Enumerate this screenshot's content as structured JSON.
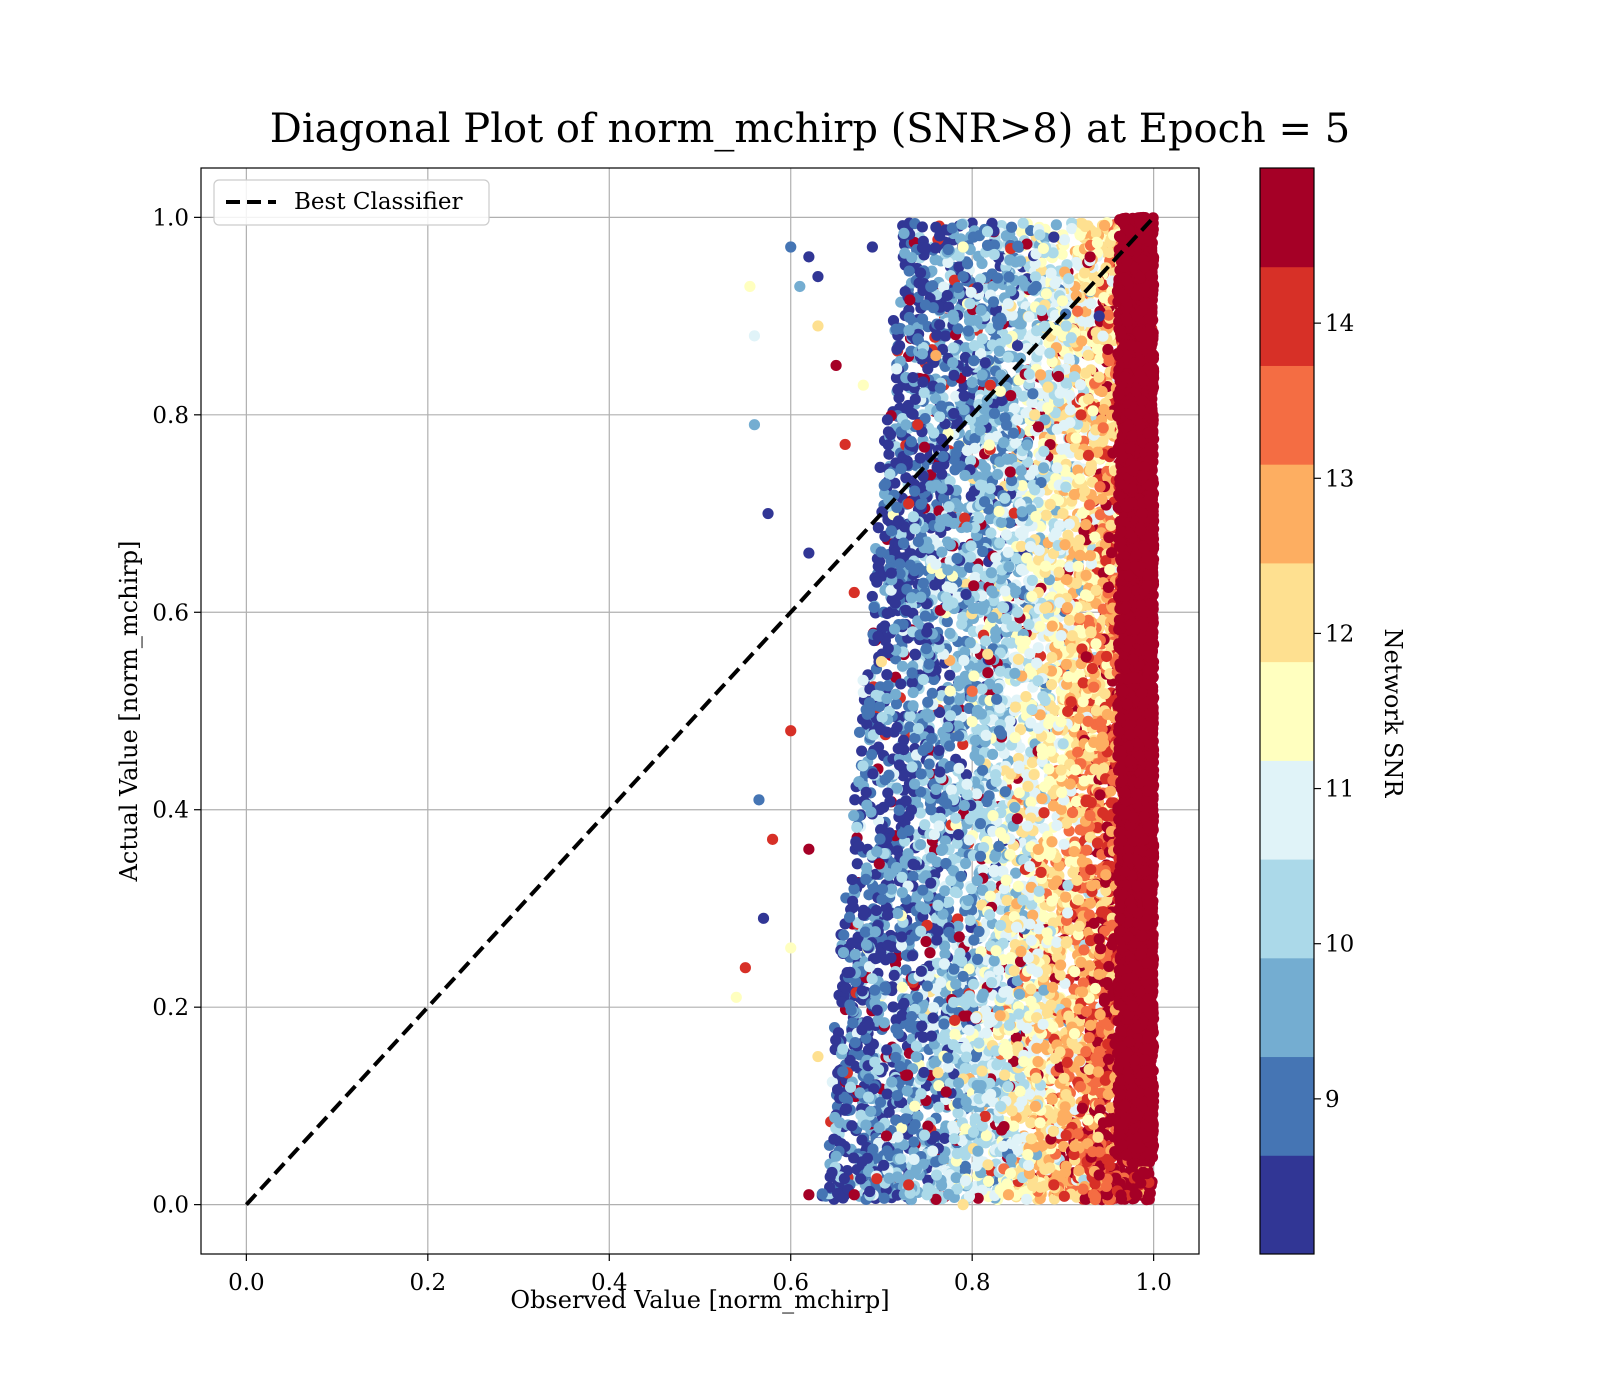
{
  "chart_data": {
    "type": "scatter",
    "title": "Diagonal Plot of norm_mchirp (SNR>8) at Epoch = 5",
    "xlabel": "Observed Value [norm_mchirp]",
    "ylabel": "Actual Value [norm_mchirp]",
    "xlim": [
      -0.05,
      1.05
    ],
    "ylim": [
      -0.05,
      1.05
    ],
    "xticks": [
      0.0,
      0.2,
      0.4,
      0.6,
      0.8,
      1.0
    ],
    "xtick_labels": [
      "0.0",
      "0.2",
      "0.4",
      "0.6",
      "0.8",
      "1.0"
    ],
    "yticks": [
      0.0,
      0.2,
      0.4,
      0.6,
      0.8,
      1.0
    ],
    "ytick_labels": [
      "0.0",
      "0.2",
      "0.4",
      "0.6",
      "0.8",
      "1.0"
    ],
    "grid": true,
    "legend": {
      "location": "upper-left",
      "entries": [
        {
          "label": "Best Classifier",
          "style": "dashed",
          "color": "#000000"
        }
      ]
    },
    "reference_line": {
      "label": "Best Classifier",
      "x": [
        0.0,
        1.0
      ],
      "y": [
        0.0,
        1.0
      ]
    },
    "colorbar": {
      "label": "Network SNR",
      "range": [
        8,
        15
      ],
      "ticks": [
        9,
        10,
        11,
        12,
        13,
        14
      ],
      "tick_labels": [
        "9",
        "10",
        "11",
        "12",
        "13",
        "14"
      ],
      "colors": [
        "#313695",
        "#4575b4",
        "#74add1",
        "#abd9e9",
        "#e0f3f8",
        "#ffffbf",
        "#fee090",
        "#fdae61",
        "#f46d43",
        "#d73027",
        "#a50026"
      ]
    },
    "series": [
      {
        "marker": "circle",
        "x_range": [
          0.54,
          1.0
        ],
        "y_range": [
          0.0,
          1.0
        ],
        "density_band": {
          "x_range": [
            0.96,
            1.0
          ],
          "dominant_color": "#a50026"
        },
        "points": [
          [
            0.54,
            0.21,
            11.5
          ],
          [
            0.55,
            0.24,
            13.8
          ],
          [
            0.555,
            0.93,
            11.2
          ],
          [
            0.56,
            0.88,
            11.0
          ],
          [
            0.56,
            0.79,
            9.4
          ],
          [
            0.565,
            0.41,
            9.2
          ],
          [
            0.575,
            0.7,
            8.3
          ],
          [
            0.6,
            0.97,
            8.8
          ],
          [
            0.61,
            0.93,
            9.5
          ],
          [
            0.62,
            0.96,
            8.5
          ],
          [
            0.63,
            0.94,
            8.2
          ],
          [
            0.63,
            0.89,
            12.3
          ],
          [
            0.69,
            0.97,
            8.3
          ],
          [
            0.76,
            0.99,
            8.2
          ],
          [
            0.79,
            0.97,
            11.8
          ],
          [
            0.79,
            0.94,
            9.0
          ],
          [
            0.72,
            0.87,
            8.5
          ],
          [
            0.76,
            0.86,
            12.5
          ],
          [
            0.78,
            0.84,
            8.2
          ],
          [
            0.65,
            0.85,
            14.4
          ],
          [
            0.68,
            0.83,
            11.5
          ],
          [
            0.74,
            0.79,
            14.2
          ],
          [
            0.71,
            0.78,
            8.4
          ],
          [
            0.66,
            0.77,
            14.0
          ],
          [
            0.73,
            0.71,
            14.1
          ],
          [
            0.78,
            0.69,
            9.3
          ],
          [
            0.82,
            0.83,
            14.3
          ],
          [
            0.85,
            0.87,
            8.3
          ],
          [
            0.89,
            0.98,
            8.2
          ],
          [
            0.93,
            0.96,
            14.4
          ],
          [
            0.62,
            0.66,
            8.2
          ],
          [
            0.67,
            0.62,
            14.3
          ],
          [
            0.7,
            0.55,
            12.1
          ],
          [
            0.75,
            0.58,
            8.2
          ],
          [
            0.8,
            0.52,
            13.6
          ],
          [
            0.85,
            0.6,
            10.4
          ],
          [
            0.9,
            0.7,
            12.2
          ],
          [
            0.92,
            0.8,
            14.2
          ],
          [
            0.94,
            0.9,
            8.4
          ],
          [
            0.6,
            0.48,
            13.9
          ],
          [
            0.62,
            0.36,
            14.6
          ],
          [
            0.58,
            0.37,
            14.3
          ],
          [
            0.57,
            0.29,
            8.3
          ],
          [
            0.6,
            0.26,
            11.2
          ],
          [
            0.63,
            0.15,
            12.3
          ],
          [
            0.62,
            0.01,
            14.4
          ],
          [
            0.67,
            0.01,
            14.5
          ],
          [
            0.73,
            0.02,
            14.1
          ],
          [
            0.79,
            0.0,
            12.4
          ],
          [
            0.84,
            0.01,
            12.6
          ],
          [
            0.89,
            0.02,
            14.3
          ],
          [
            0.94,
            0.03,
            14.6
          ],
          [
            0.97,
            0.05,
            14.8
          ],
          [
            0.99,
            0.2,
            14.9
          ],
          [
            0.99,
            0.6,
            14.9
          ],
          [
            0.99,
            0.95,
            14.9
          ]
        ]
      }
    ]
  }
}
